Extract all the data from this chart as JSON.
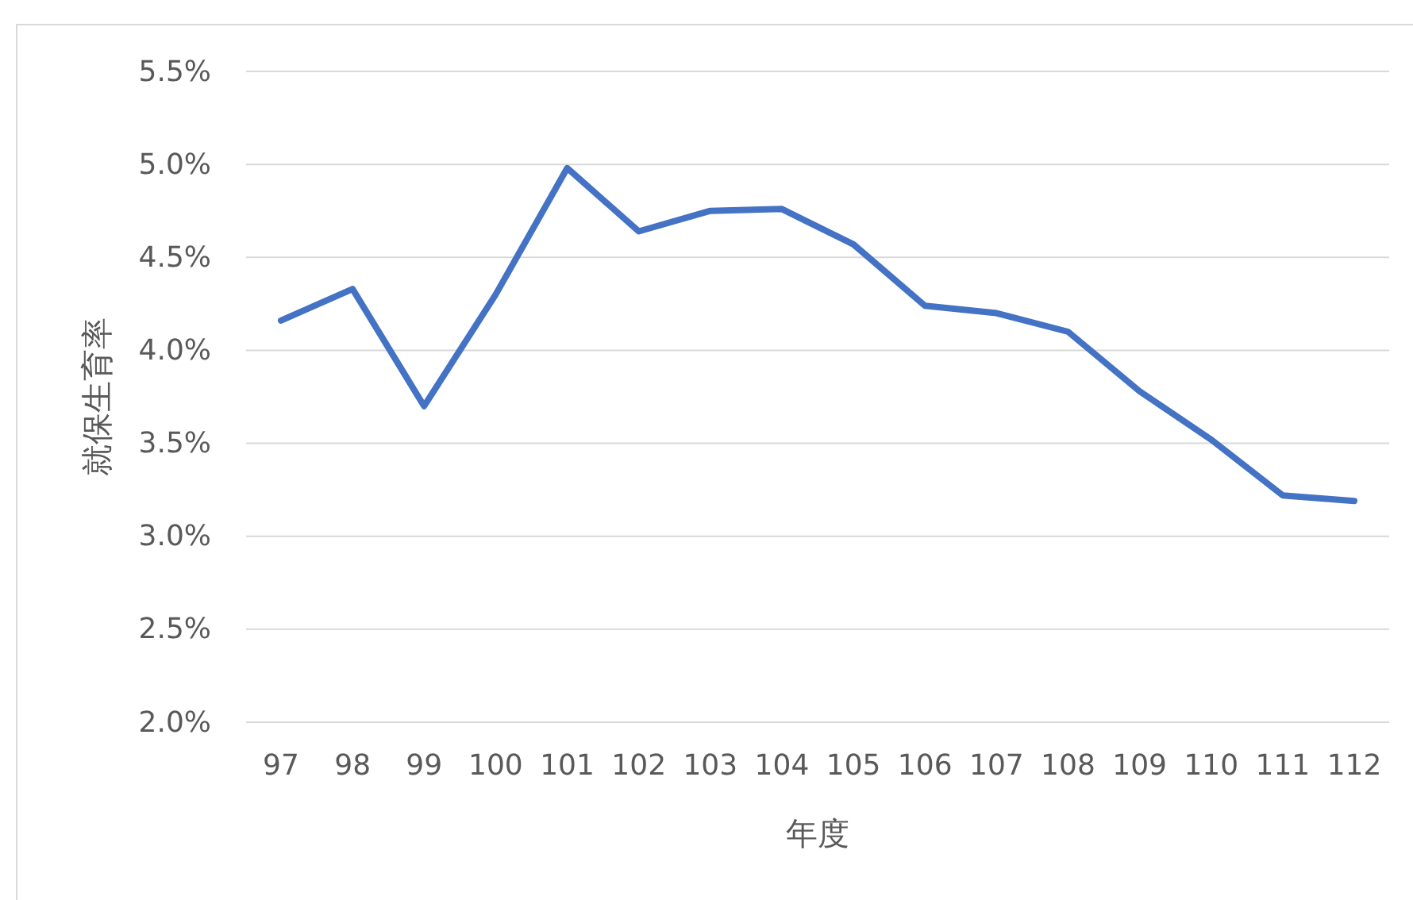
{
  "chart_data": {
    "type": "line",
    "xlabel": "年度",
    "ylabel": "就保生育率",
    "categories": [
      "97",
      "98",
      "99",
      "100",
      "101",
      "102",
      "103",
      "104",
      "105",
      "106",
      "107",
      "108",
      "109",
      "110",
      "111",
      "112"
    ],
    "series": [
      {
        "color": "#4472c4",
        "values": [
          4.16,
          4.33,
          3.7,
          4.3,
          4.98,
          4.64,
          4.75,
          4.76,
          4.57,
          4.24,
          4.2,
          4.1,
          3.78,
          3.52,
          3.22,
          3.19
        ]
      }
    ],
    "ylim": [
      2.0,
      5.5
    ],
    "yticks": [
      {
        "value": 2.0,
        "label": "2.0%"
      },
      {
        "value": 2.5,
        "label": "2.5%"
      },
      {
        "value": 3.0,
        "label": "3.0%"
      },
      {
        "value": 3.5,
        "label": "3.5%"
      },
      {
        "value": 4.0,
        "label": "4.0%"
      },
      {
        "value": 4.5,
        "label": "4.5%"
      },
      {
        "value": 5.0,
        "label": "5.0%"
      },
      {
        "value": 5.5,
        "label": "5.5%"
      }
    ],
    "grid": "y",
    "marker": "none",
    "line_style": "solid"
  }
}
